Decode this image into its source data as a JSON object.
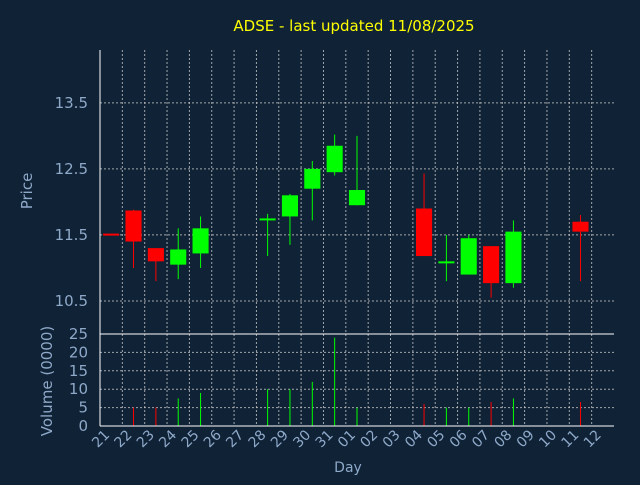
{
  "chart_data": {
    "type": "candlestick",
    "title": "ADSE - last updated 11/08/2025",
    "xlabel": "Day",
    "ylabel_price": "Price",
    "ylabel_volume": "Volume (0000)",
    "price_ylim": [
      10.0,
      14.3
    ],
    "price_ticks": [
      10.5,
      11.5,
      12.5,
      13.5
    ],
    "price_tick_labels": [
      "10.5",
      "11.5",
      "12.5",
      "13.5"
    ],
    "volume_ylim": [
      0,
      25
    ],
    "volume_ticks": [
      0,
      5,
      10,
      15,
      20,
      25
    ],
    "x_tick_labels": [
      "21",
      "22",
      "23",
      "24",
      "25",
      "26",
      "27",
      "28",
      "29",
      "30",
      "31",
      "01",
      "02",
      "03",
      "04",
      "05",
      "06",
      "07",
      "08",
      "09",
      "10",
      "11",
      "12"
    ],
    "grid": true,
    "colors": {
      "up": "#00ff00",
      "down": "#ff0000",
      "grid": "#c8c8c8",
      "title": "#ffff00",
      "text": "#8fa9c9",
      "axis": "#ffffff",
      "background": "#0f2236"
    },
    "candles": [
      {
        "i": 0,
        "open": 11.52,
        "high": 11.52,
        "low": 11.5,
        "close": 11.5,
        "volume": 0
      },
      {
        "i": 1,
        "open": 11.87,
        "high": 11.88,
        "low": 11.0,
        "close": 11.4,
        "volume": 5
      },
      {
        "i": 2,
        "open": 11.3,
        "high": 11.3,
        "low": 10.8,
        "close": 11.1,
        "volume": 5
      },
      {
        "i": 3,
        "open": 11.05,
        "high": 11.6,
        "low": 10.83,
        "close": 11.28,
        "volume": 7.5
      },
      {
        "i": 4,
        "open": 11.22,
        "high": 11.78,
        "low": 11.0,
        "close": 11.6,
        "volume": 9
      },
      {
        "i": 7,
        "open": 11.72,
        "high": 11.82,
        "low": 11.18,
        "close": 11.75,
        "volume": 10
      },
      {
        "i": 8,
        "open": 11.78,
        "high": 12.12,
        "low": 11.35,
        "close": 12.1,
        "volume": 10
      },
      {
        "i": 9,
        "open": 12.2,
        "high": 12.62,
        "low": 11.72,
        "close": 12.5,
        "volume": 12
      },
      {
        "i": 10,
        "open": 12.45,
        "high": 13.02,
        "low": 12.4,
        "close": 12.85,
        "volume": 24
      },
      {
        "i": 11,
        "open": 11.95,
        "high": 13.0,
        "low": 11.95,
        "close": 12.18,
        "volume": 5
      },
      {
        "i": 14,
        "open": 11.9,
        "high": 12.43,
        "low": 11.18,
        "close": 11.18,
        "volume": 6
      },
      {
        "i": 15,
        "open": 11.1,
        "high": 11.5,
        "low": 10.8,
        "close": 11.1,
        "volume": 5
      },
      {
        "i": 16,
        "open": 10.9,
        "high": 11.5,
        "low": 10.9,
        "close": 11.45,
        "volume": 5
      },
      {
        "i": 17,
        "open": 11.33,
        "high": 11.33,
        "low": 10.55,
        "close": 10.77,
        "volume": 6.5
      },
      {
        "i": 18,
        "open": 10.77,
        "high": 11.72,
        "low": 10.7,
        "close": 11.55,
        "volume": 7.5
      },
      {
        "i": 21,
        "open": 11.7,
        "high": 11.8,
        "low": 10.8,
        "close": 11.55,
        "volume": 6.5
      }
    ]
  }
}
